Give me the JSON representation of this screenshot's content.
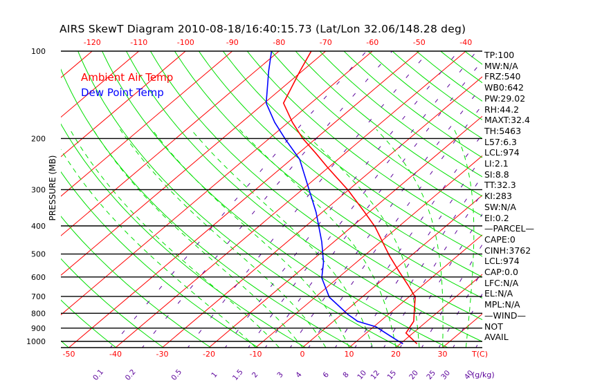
{
  "chart_data": {
    "type": "line",
    "title": "AIRS SkewT Diagram 2010-08-18/16:40:15.73 (Lat/Lon 32.06/148.28 deg)",
    "ylabel": "PRESSURE (MB)",
    "xlabel": "T(C)",
    "mixing_ratio_label": "(g/kg)",
    "y_scale": "log",
    "ylim": [
      1050,
      100
    ],
    "pressure_ticks": [
      "100",
      "200",
      "300",
      "400",
      "500",
      "600",
      "700",
      "800",
      "900",
      "1000"
    ],
    "bottom_temp_ticks": [
      "-50",
      "-40",
      "-30",
      "-20",
      "-10",
      "0",
      "10",
      "20",
      "30"
    ],
    "top_temp_ticks": [
      "-120",
      "-110",
      "-100",
      "-90",
      "-80",
      "-70",
      "-60",
      "-50",
      "-40"
    ],
    "mixing_ratio_ticks": [
      "0.1",
      "0.2",
      "0.5",
      "1",
      "1.5",
      "2",
      "3",
      "4",
      "6",
      "8",
      "10",
      "12",
      "15",
      "20",
      "25",
      "30",
      "40"
    ],
    "legend": [
      {
        "label": "Ambient Air Temp",
        "color": "#ff0000"
      },
      {
        "label": "Dew Point Temp",
        "color": "#0000ff"
      }
    ],
    "series": [
      {
        "name": "Ambient Air Temp",
        "color": "#ff0000",
        "pressure": [
          100,
          117,
          151,
          176,
          200,
          226,
          251,
          301,
          359,
          403,
          507,
          575,
          641,
          704,
          773,
          853,
          936,
          1020
        ],
        "temperature": [
          -73.1,
          -70.5,
          -65.9,
          -59.1,
          -52.8,
          -46.0,
          -40.3,
          -30.1,
          -20.9,
          -15.0,
          -4.6,
          1.5,
          6.9,
          11.4,
          14.2,
          17.2,
          18.5,
          23.6
        ]
      },
      {
        "name": "Dew Point Temp",
        "color": "#0000ff",
        "pressure": [
          100,
          117,
          151,
          176,
          201,
          236,
          304,
          359,
          454,
          535,
          604,
          704,
          808,
          853,
          891,
          978,
          1020
        ],
        "temperature": [
          -81.6,
          -77.2,
          -69.6,
          -62.9,
          -56.4,
          -48.2,
          -38.0,
          -31.3,
          -22.6,
          -17.0,
          -13.5,
          -7.0,
          1.4,
          5.2,
          10.5,
          17.4,
          20.6
        ]
      }
    ],
    "grid": {
      "isotherm_color": "#ff0000",
      "dry_adiabat_color": "#00e000",
      "moist_adiabat_color": "#00e000",
      "mixing_ratio_color": "#5a009a"
    }
  },
  "indices": [
    "TP:100",
    "MW:N/A",
    "FRZ:540",
    "WB0:642",
    "PW:29.02",
    "RH:44.2",
    "MAXT:32.4",
    "TH:5463",
    "L57:6.3",
    "LCL:974",
    "LI:2.1",
    "SI:8.8",
    "TT:32.3",
    "KI:283",
    "SW:N/A",
    "EI:0.2",
    "—PARCEL—",
    "CAPE:0",
    "CINH:3762",
    "LCL:974",
    "CAP:0.0",
    "LFC:N/A",
    "EL:N/A",
    "MPL:N/A",
    "—WIND—",
    "NOT",
    "AVAIL"
  ]
}
